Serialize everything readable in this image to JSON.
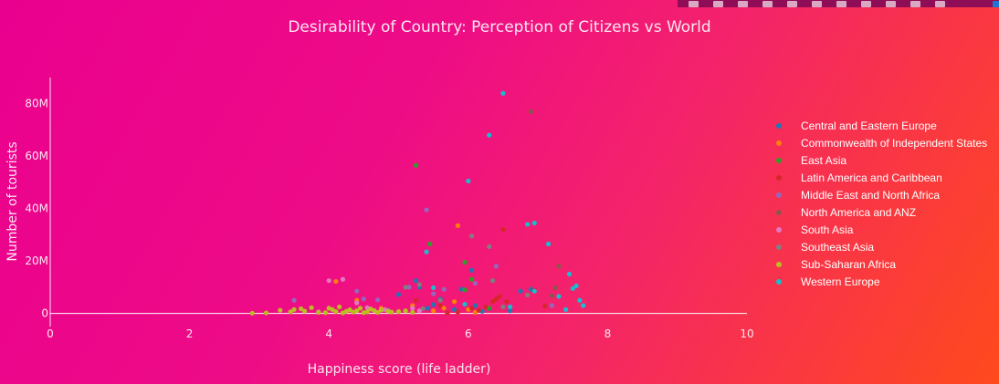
{
  "chart_data": {
    "type": "scatter",
    "title": "Desirability of Country: Perception of Citizens vs World",
    "xlabel": "Happiness score (life ladder)",
    "ylabel": "Number of tourists",
    "xlim": [
      0,
      10
    ],
    "ylim": [
      -5000000,
      90000000
    ],
    "x_ticks": [
      0,
      2,
      4,
      6,
      8,
      10
    ],
    "x_tick_labels": [
      "0",
      "2",
      "4",
      "6",
      "8",
      "10"
    ],
    "y_ticks": [
      0,
      20000000,
      40000000,
      60000000,
      80000000
    ],
    "y_tick_labels": [
      "0",
      "20M",
      "40M",
      "60M",
      "80M"
    ],
    "legend_position": "right",
    "series": [
      {
        "name": "Central and Eastern Europe",
        "color": "#1f77b4",
        "x": [
          5.25,
          5.3,
          5.42,
          5.6,
          5.8,
          5.9,
          6.05,
          6.1,
          6.3,
          6.6,
          6.75,
          6.9,
          5.0,
          5.5,
          6.2
        ],
        "y": [
          12500000,
          10000000,
          2000000,
          5500000,
          1500000,
          9200000,
          16500000,
          3000000,
          1800000,
          1000000,
          8500000,
          9200000,
          7200000,
          3400000,
          800000
        ]
      },
      {
        "name": "Commonwealth of Independent States",
        "color": "#ff7f0e",
        "x": [
          4.1,
          4.4,
          4.75,
          5.2,
          5.5,
          5.65,
          5.8,
          5.85,
          6.0,
          6.1
        ],
        "y": [
          12200000,
          5000000,
          2000000,
          3000000,
          1000000,
          2000000,
          4500000,
          33500000,
          1500000,
          400000
        ]
      },
      {
        "name": "East Asia",
        "color": "#2ca02c",
        "x": [
          5.25,
          5.45,
          5.95,
          6.05,
          5.95,
          6.3
        ],
        "y": [
          56500000,
          26500000,
          19500000,
          13000000,
          9000000,
          2000000
        ]
      },
      {
        "name": "Latin America and Caribbean",
        "color": "#d62728",
        "x": [
          5.25,
          5.6,
          5.85,
          6.05,
          6.25,
          6.35,
          6.4,
          6.45,
          6.5,
          6.55,
          7.1,
          6.95,
          5.7,
          6.15
        ],
        "y": [
          5000000,
          3000000,
          500000,
          2000000,
          2500000,
          4500000,
          5500000,
          6500000,
          32000000,
          4500000,
          2800000,
          8800000,
          200000,
          1200000
        ]
      },
      {
        "name": "Middle East and North Africa",
        "color": "#9467bd",
        "x": [
          3.5,
          4.4,
          4.5,
          4.7,
          5.15,
          5.4,
          5.5,
          5.65,
          6.1,
          6.4,
          7.2,
          4.85
        ],
        "y": [
          5000000,
          8500000,
          5500000,
          5200000,
          10000000,
          39500000,
          7500000,
          9200000,
          11500000,
          18000000,
          3000000,
          1200000
        ]
      },
      {
        "name": "North America and ANZ",
        "color": "#8c564b",
        "x": [
          6.9,
          7.3,
          7.25,
          7.2
        ],
        "y": [
          77000000,
          18000000,
          9800000,
          6800000
        ]
      },
      {
        "name": "South Asia",
        "color": "#e377c2",
        "x": [
          4.0,
          4.2,
          4.4,
          4.55,
          4.8,
          5.2,
          5.3,
          3.85
        ],
        "y": [
          12500000,
          13000000,
          4000000,
          2200000,
          1500000,
          2000000,
          1000000,
          600000
        ]
      },
      {
        "name": "Southeast Asia",
        "color": "#7f7f7f",
        "x": [
          5.1,
          5.3,
          5.6,
          6.05,
          6.3,
          6.35,
          6.5,
          6.85,
          5.35
        ],
        "y": [
          10000000,
          11000000,
          5000000,
          29500000,
          25500000,
          12500000,
          2500000,
          7000000,
          1800000
        ]
      },
      {
        "name": "Sub-Saharan Africa",
        "color": "#bcbd22",
        "x": [
          2.9,
          3.1,
          3.3,
          3.45,
          3.6,
          3.65,
          3.75,
          3.85,
          3.95,
          4.05,
          4.1,
          4.15,
          4.2,
          4.25,
          4.3,
          4.35,
          4.4,
          4.45,
          4.5,
          4.55,
          4.6,
          4.65,
          4.7,
          4.75,
          4.85,
          4.9,
          5.0,
          5.1,
          5.2,
          3.5,
          4.0
        ],
        "y": [
          100000,
          200000,
          1200000,
          600000,
          1800000,
          900000,
          2200000,
          400000,
          300000,
          1500000,
          700000,
          2500000,
          200000,
          800000,
          1400000,
          500000,
          1000000,
          2000000,
          300000,
          600000,
          1700000,
          1100000,
          400000,
          1300000,
          900000,
          500000,
          700000,
          1000000,
          400000,
          1500000,
          2000000
        ]
      },
      {
        "name": "Western Europe",
        "color": "#17becf",
        "x": [
          6.5,
          6.3,
          6.0,
          6.85,
          6.95,
          7.15,
          7.45,
          7.55,
          7.6,
          7.65,
          7.5,
          7.3,
          6.95,
          6.6,
          7.4,
          5.4,
          5.5,
          5.95
        ],
        "y": [
          84000000,
          68000000,
          50500000,
          34000000,
          34500000,
          26500000,
          15000000,
          10500000,
          5000000,
          3000000,
          9500000,
          6500000,
          8500000,
          2500000,
          1500000,
          23500000,
          9800000,
          3500000
        ]
      }
    ]
  }
}
